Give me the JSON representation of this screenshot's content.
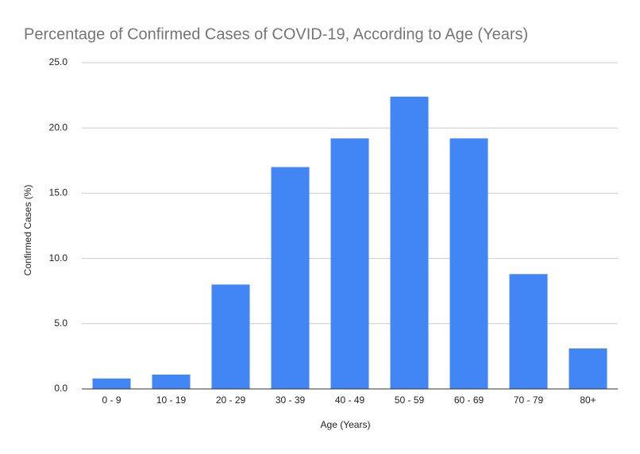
{
  "chart_data": {
    "type": "bar",
    "title": "Percentage of Confirmed Cases of COVID-19, According to Age (Years)",
    "x_label": "Age (Years)",
    "y_label": "Confirmed Cases (%)",
    "categories": [
      "0 - 9",
      "10 - 19",
      "20 - 29",
      "30 - 39",
      "40 - 49",
      "50 - 59",
      "60 - 69",
      "70 - 79",
      "80+"
    ],
    "values": [
      0.8,
      1.1,
      8.0,
      17.0,
      19.2,
      22.4,
      19.2,
      8.8,
      3.1
    ],
    "color": "#4285f4",
    "ylim": [
      0,
      25
    ],
    "yticks": [
      {
        "value": 0,
        "label": "0.0"
      },
      {
        "value": 5,
        "label": "5.0"
      },
      {
        "value": 10,
        "label": "10.0"
      },
      {
        "value": 15,
        "label": "15.0"
      },
      {
        "value": 20,
        "label": "20.0"
      },
      {
        "value": 25,
        "label": "25.0"
      }
    ],
    "grid": true
  }
}
